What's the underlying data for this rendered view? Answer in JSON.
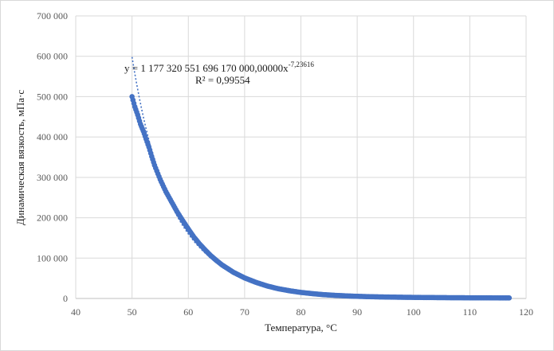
{
  "chart_data": {
    "type": "scatter",
    "title": "",
    "xlabel": "Температура, °С",
    "ylabel": "Динамическая вязкость, мПа·с",
    "xlim": [
      40,
      120
    ],
    "ylim": [
      0,
      700000
    ],
    "x_ticks": [
      40,
      50,
      60,
      70,
      80,
      90,
      100,
      110,
      120
    ],
    "x_tick_labels": [
      "40",
      "50",
      "60",
      "70",
      "80",
      "90",
      "100",
      "110",
      "120"
    ],
    "y_ticks": [
      0,
      100000,
      200000,
      300000,
      400000,
      500000,
      600000,
      700000
    ],
    "y_tick_labels": [
      "0",
      "100 000",
      "200 000",
      "300 000",
      "400 000",
      "500 000",
      "600 000",
      "700 000"
    ],
    "grid": true,
    "legend": "none",
    "marker_color": "#4472c4",
    "trendline_color": "#4472c4",
    "series": [
      {
        "x": [
          50,
          50.5,
          51,
          51.5,
          52,
          52.5,
          53,
          53.5,
          54,
          55,
          56,
          57,
          58,
          59,
          60,
          61,
          62,
          63,
          64,
          65,
          66,
          67,
          68,
          69,
          70,
          72,
          74,
          76,
          78,
          80,
          82,
          84,
          86,
          88,
          90,
          92,
          94,
          96,
          98,
          100,
          102,
          104,
          106,
          108,
          110,
          112,
          114,
          116,
          117
        ],
        "y": [
          500000,
          475000,
          455000,
          432000,
          415000,
          395000,
          375000,
          352000,
          330000,
          295000,
          265000,
          240000,
          215000,
          193000,
          172000,
          152000,
          135000,
          120000,
          106000,
          94000,
          83000,
          74000,
          65000,
          58000,
          51000,
          40000,
          31000,
          24000,
          19000,
          15000,
          12000,
          9500,
          7800,
          6400,
          5300,
          4500,
          3900,
          3400,
          3000,
          2700,
          2400,
          2200,
          2000,
          1800,
          1700,
          1600,
          1500,
          1400,
          1350
        ]
      }
    ],
    "trendline": {
      "type": "power",
      "equation_text": "y = 1 177 320 551 696 170 000,00000x",
      "exponent_text": "-7,23616",
      "r2_text": "R² = 0,99554",
      "coefficient": 1.17732055169617e+18,
      "exponent": -7.23616,
      "x_range": [
        50,
        117
      ]
    }
  }
}
